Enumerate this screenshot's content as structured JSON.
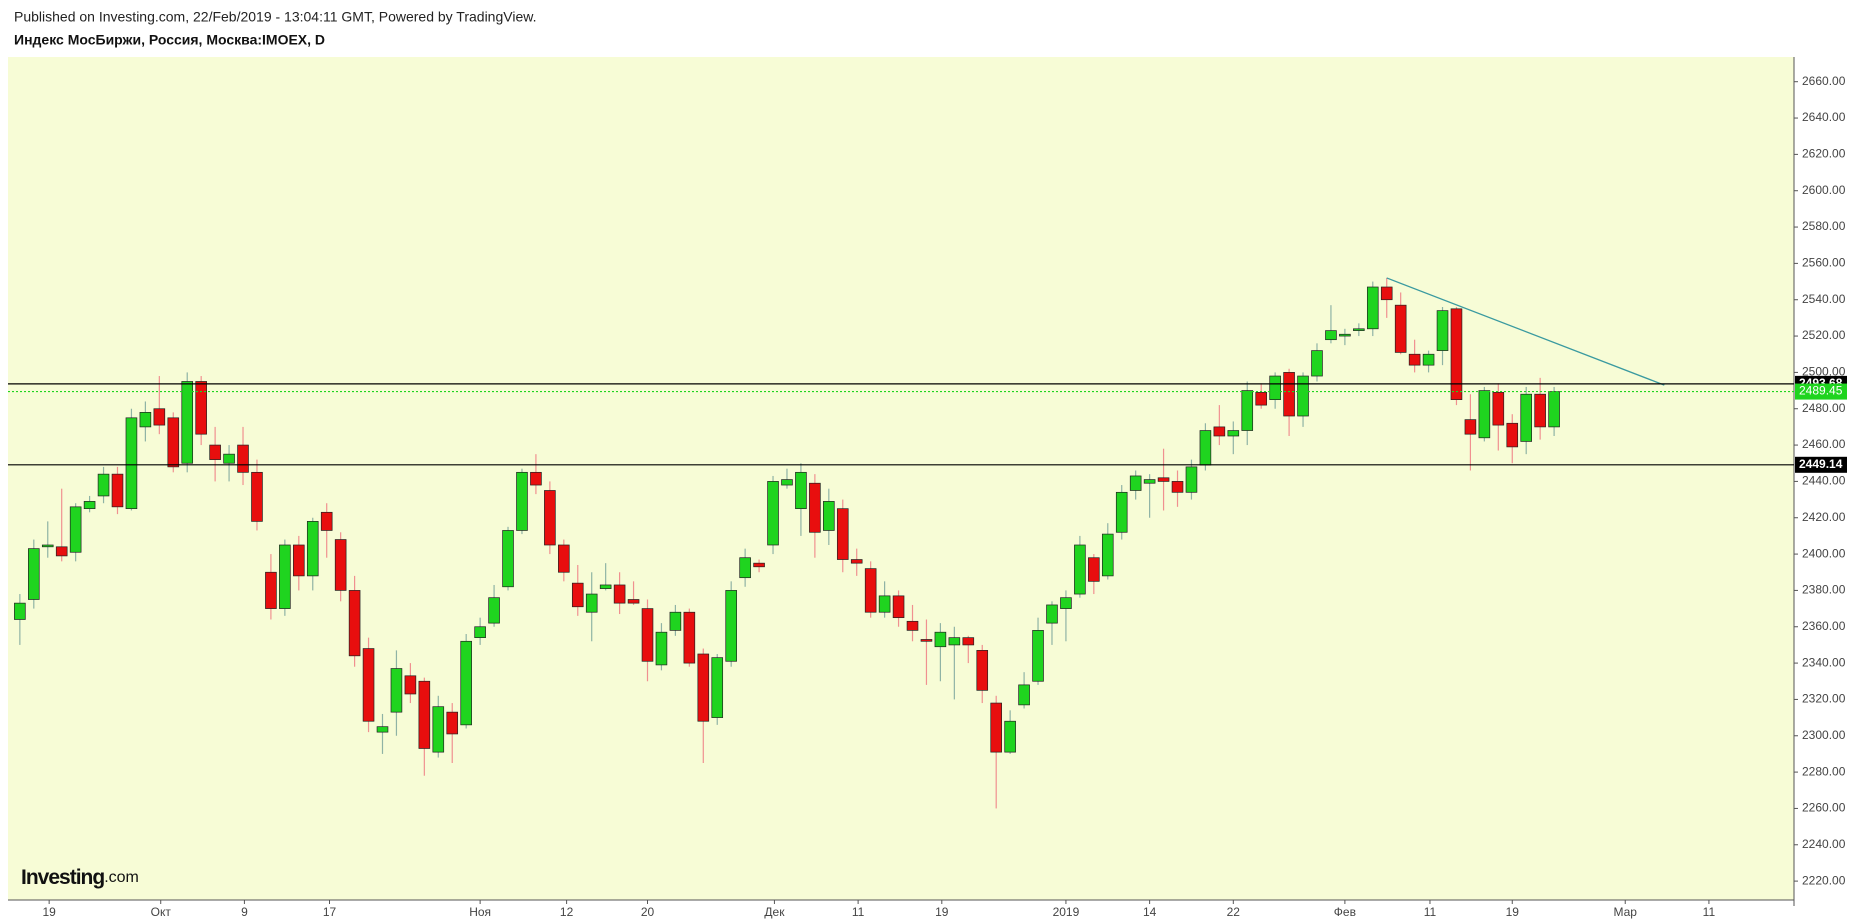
{
  "header": "Published on Investing.com, 22/Feb/2019 - 13:04:11 GMT, Powered by TradingView.",
  "logo": {
    "text": "Investing",
    "suffix": ".com"
  },
  "chart_data": {
    "type": "candlestick",
    "title": "Индекс МосБиржи, Россия, Москва:IMOEX, D",
    "background": "#f7fcd6",
    "up_color": "#1fd41f",
    "down_color": "#e80e0e",
    "up_wick_color": "#8fb3a5",
    "down_wick_color": "#f09090",
    "x": [
      0,
      1,
      2,
      3,
      4,
      5,
      6,
      7,
      8,
      9,
      10,
      11,
      12,
      13,
      14,
      15,
      16,
      17,
      18,
      19,
      20,
      21,
      22,
      23,
      24,
      25,
      26,
      27,
      28,
      29,
      30,
      31,
      32,
      33,
      34,
      35,
      36,
      37,
      38,
      39,
      40,
      41,
      42,
      43,
      44,
      45,
      46,
      47,
      48,
      49,
      50,
      51,
      52,
      53,
      54,
      55,
      56,
      57,
      58,
      59,
      60,
      61,
      62,
      63,
      64,
      65,
      66,
      67,
      68,
      69,
      70,
      71,
      72,
      73,
      74,
      75,
      76,
      77,
      78,
      79,
      80,
      81,
      82,
      83,
      84,
      85,
      86,
      87,
      88,
      89,
      90,
      91,
      92,
      93,
      94,
      95,
      96,
      97,
      98,
      99,
      100,
      101,
      102,
      103,
      104,
      105,
      106,
      107,
      108,
      109,
      110
    ],
    "open": [
      2364,
      2375,
      2404,
      2404,
      2401,
      2425,
      2432,
      2444,
      2425,
      2470,
      2480,
      2475,
      2450,
      2495,
      2460,
      2450,
      2460,
      2445,
      2390,
      2370,
      2405,
      2388,
      2423,
      2408,
      2380,
      2348,
      2302,
      2313,
      2333,
      2330,
      2291,
      2313,
      2306,
      2354,
      2362,
      2382,
      2413,
      2445,
      2435,
      2405,
      2384,
      2368,
      2381,
      2383,
      2375,
      2370,
      2339,
      2358,
      2368,
      2345,
      2310,
      2341,
      2387,
      2395,
      2405,
      2438,
      2425,
      2439,
      2413,
      2425,
      2397,
      2392,
      2368,
      2377,
      2363,
      2353,
      2349,
      2350,
      2354,
      2347,
      2318,
      2291,
      2317,
      2330,
      2362,
      2370,
      2378,
      2398,
      2388,
      2412,
      2435,
      2439,
      2442,
      2440,
      2434,
      2449,
      2470,
      2465,
      2468,
      2489,
      2485,
      2500,
      2476,
      2498,
      2518,
      2520,
      2523,
      2524,
      2547,
      2537,
      2510,
      2504,
      2512,
      2535,
      2474,
      2464,
      2489,
      2472,
      2462,
      2488,
      2470
    ],
    "high": [
      2378,
      2408,
      2418,
      2436,
      2428,
      2432,
      2448,
      2448,
      2480,
      2484,
      2498,
      2478,
      2500,
      2498,
      2470,
      2460,
      2470,
      2452,
      2400,
      2408,
      2410,
      2420,
      2428,
      2412,
      2388,
      2354,
      2312,
      2347,
      2340,
      2332,
      2322,
      2318,
      2356,
      2365,
      2383,
      2415,
      2447,
      2455,
      2440,
      2408,
      2394,
      2390,
      2395,
      2390,
      2385,
      2375,
      2362,
      2372,
      2370,
      2348,
      2345,
      2385,
      2403,
      2397,
      2443,
      2447,
      2450,
      2444,
      2436,
      2430,
      2403,
      2396,
      2385,
      2380,
      2372,
      2364,
      2362,
      2360,
      2355,
      2350,
      2322,
      2314,
      2335,
      2365,
      2374,
      2380,
      2410,
      2400,
      2417,
      2438,
      2446,
      2444,
      2458,
      2446,
      2452,
      2472,
      2482,
      2473,
      2495,
      2494,
      2500,
      2502,
      2500,
      2516,
      2537,
      2524,
      2527,
      2550,
      2552,
      2544,
      2518,
      2512,
      2536,
      2536,
      2488,
      2492,
      2494,
      2477,
      2492,
      2497,
      2492
    ],
    "low": [
      2350,
      2370,
      2398,
      2396,
      2396,
      2423,
      2428,
      2422,
      2424,
      2462,
      2466,
      2445,
      2445,
      2460,
      2440,
      2440,
      2438,
      2413,
      2364,
      2366,
      2380,
      2380,
      2398,
      2374,
      2338,
      2302,
      2290,
      2300,
      2318,
      2278,
      2288,
      2285,
      2304,
      2350,
      2360,
      2380,
      2411,
      2433,
      2400,
      2385,
      2366,
      2352,
      2380,
      2367,
      2372,
      2330,
      2336,
      2355,
      2338,
      2285,
      2306,
      2338,
      2382,
      2390,
      2400,
      2436,
      2410,
      2398,
      2405,
      2390,
      2388,
      2365,
      2365,
      2360,
      2352,
      2328,
      2330,
      2320,
      2340,
      2318,
      2260,
      2290,
      2315,
      2328,
      2350,
      2352,
      2376,
      2378,
      2386,
      2408,
      2430,
      2420,
      2424,
      2426,
      2430,
      2446,
      2460,
      2455,
      2460,
      2480,
      2480,
      2465,
      2470,
      2495,
      2516,
      2515,
      2520,
      2520,
      2530,
      2510,
      2500,
      2500,
      2504,
      2482,
      2446,
      2462,
      2457,
      2450,
      2455,
      2463,
      2465
    ],
    "close": [
      2373,
      2403,
      2405,
      2399,
      2426,
      2429,
      2444,
      2426,
      2475,
      2478,
      2471,
      2448,
      2495,
      2466,
      2452,
      2455,
      2445,
      2418,
      2370,
      2405,
      2388,
      2418,
      2413,
      2380,
      2344,
      2308,
      2305,
      2337,
      2323,
      2293,
      2316,
      2301,
      2352,
      2360,
      2376,
      2413,
      2445,
      2438,
      2405,
      2390,
      2371,
      2378,
      2383,
      2373,
      2373,
      2341,
      2357,
      2368,
      2340,
      2308,
      2343,
      2380,
      2398,
      2393,
      2440,
      2441,
      2445,
      2412,
      2429,
      2397,
      2395,
      2368,
      2377,
      2365,
      2358,
      2352,
      2357,
      2354,
      2350,
      2325,
      2291,
      2308,
      2328,
      2358,
      2372,
      2376,
      2405,
      2385,
      2411,
      2434,
      2443,
      2441,
      2440,
      2434,
      2448,
      2468,
      2465,
      2468,
      2490,
      2482,
      2498,
      2476,
      2498,
      2512,
      2523,
      2521,
      2524,
      2547,
      2540,
      2511,
      2504,
      2510,
      2534,
      2485,
      2466,
      2490,
      2471,
      2459,
      2488,
      2470,
      2489.45
    ],
    "last_price_color": "#1fd41f",
    "levels": [
      2493.68,
      2449.14
    ],
    "level_color": "#000000",
    "trendline": {
      "x": [
        98,
        117.9
      ],
      "y": [
        2552,
        2493
      ],
      "color": "#3a9aa0"
    },
    "xlim": [
      -0.85,
      127.2
    ],
    "xticks": [
      {
        "value": 2.1,
        "label": "19"
      },
      {
        "value": 10.1,
        "label": "Окт"
      },
      {
        "value": 16.1,
        "label": "9"
      },
      {
        "value": 22.2,
        "label": "17"
      },
      {
        "value": 33,
        "label": "Ноя"
      },
      {
        "value": 39.2,
        "label": "12"
      },
      {
        "value": 45,
        "label": "20"
      },
      {
        "value": 54.1,
        "label": "Дек"
      },
      {
        "value": 60.1,
        "label": "11"
      },
      {
        "value": 66.1,
        "label": "19"
      },
      {
        "value": 75,
        "label": "2019"
      },
      {
        "value": 81,
        "label": "14"
      },
      {
        "value": 87,
        "label": "22"
      },
      {
        "value": 95,
        "label": "Фев"
      },
      {
        "value": 101.1,
        "label": "11"
      },
      {
        "value": 107,
        "label": "19"
      },
      {
        "value": 115.1,
        "label": "Мар"
      },
      {
        "value": 121.1,
        "label": "11"
      }
    ],
    "ylim": [
      2209.6,
      2673.6
    ],
    "yticks": [
      {
        "value": 2220,
        "label": "2220.00"
      },
      {
        "value": 2240,
        "label": "2240.00"
      },
      {
        "value": 2260,
        "label": "2260.00"
      },
      {
        "value": 2280,
        "label": "2280.00"
      },
      {
        "value": 2300,
        "label": "2300.00"
      },
      {
        "value": 2320,
        "label": "2320.00"
      },
      {
        "value": 2340,
        "label": "2340.00"
      },
      {
        "value": 2360,
        "label": "2360.00"
      },
      {
        "value": 2380,
        "label": "2380.00"
      },
      {
        "value": 2400,
        "label": "2400.00"
      },
      {
        "value": 2420,
        "label": "2420.00"
      },
      {
        "value": 2440,
        "label": "2440.00"
      },
      {
        "value": 2460,
        "label": "2460.00"
      },
      {
        "value": 2480,
        "label": "2480.00"
      },
      {
        "value": 2500,
        "label": "2500.00"
      },
      {
        "value": 2520,
        "label": "2520.00"
      },
      {
        "value": 2540,
        "label": "2540.00"
      },
      {
        "value": 2560,
        "label": "2560.00"
      },
      {
        "value": 2580,
        "label": "2580.00"
      },
      {
        "value": 2600,
        "label": "2600.00"
      },
      {
        "value": 2620,
        "label": "2620.00"
      },
      {
        "value": 2640,
        "label": "2640.00"
      },
      {
        "value": 2660,
        "label": "2660.00"
      }
    ]
  }
}
